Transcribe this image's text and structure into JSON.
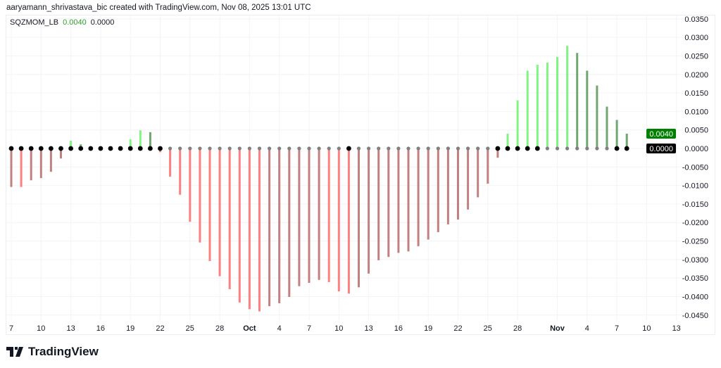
{
  "header": {
    "attribution": "aaryamann_shrivastava_bic created with TradingView.com, Nov 08, 2025 13:01 UTC"
  },
  "legend": {
    "name": "SQZMOM_LB",
    "value1": "0.0040",
    "value2": "0.0000"
  },
  "logo": {
    "text": "TradingView"
  },
  "price_labels": {
    "current": "0.0040",
    "zero": "0.0000",
    "current_color": "#008000",
    "zero_color": "#000000"
  },
  "chart_data": {
    "type": "bar",
    "title": "",
    "x_ticks": [
      "7",
      "10",
      "13",
      "16",
      "19",
      "22",
      "25",
      "28",
      "Oct",
      "4",
      "7",
      "10",
      "13",
      "16",
      "19",
      "22",
      "25",
      "28",
      "Nov",
      "4",
      "7",
      "10",
      "13"
    ],
    "y_ticks": [
      "0.0350",
      "0.0300",
      "0.0250",
      "0.0200",
      "0.0150",
      "0.0100",
      "0.0050",
      "0.0000",
      "-0.0050",
      "-0.0100",
      "-0.0150",
      "-0.0200",
      "-0.0250",
      "-0.0300",
      "-0.0350",
      "-0.0400",
      "-0.0450"
    ],
    "ylim": [
      -0.0465,
      0.0365
    ],
    "x_range": [
      "2025-09-07",
      "2025-11-08"
    ],
    "grid": true,
    "colors": {
      "lime": "#80f580",
      "green": "#6fa76f",
      "red": "#ff8080",
      "maroon": "#c28080",
      "dot_on": "#000000",
      "dot_off": "#808080"
    },
    "values": [
      -0.0104,
      -0.0104,
      -0.0086,
      -0.008,
      -0.0063,
      -0.0027,
      0.0021,
      0.0011,
      0.0002,
      0.0001,
      0.0,
      -0.0004,
      0.0025,
      0.0049,
      0.0044,
      -0.001,
      -0.0076,
      -0.0125,
      -0.0198,
      -0.0254,
      -0.0304,
      -0.0345,
      -0.038,
      -0.0416,
      -0.0434,
      -0.044,
      -0.0426,
      -0.0418,
      -0.0401,
      -0.0372,
      -0.0363,
      -0.0355,
      -0.0361,
      -0.0386,
      -0.0392,
      -0.0375,
      -0.0338,
      -0.0302,
      -0.0293,
      -0.0282,
      -0.0278,
      -0.0264,
      -0.0246,
      -0.0226,
      -0.0205,
      -0.0192,
      -0.0165,
      -0.0132,
      -0.0095,
      -0.0025,
      0.004,
      0.013,
      0.021,
      0.0226,
      0.0232,
      0.0247,
      0.0277,
      0.0258,
      0.021,
      0.017,
      0.0113,
      0.0077,
      0.004
    ],
    "bar_colors": [
      "maroon",
      "red",
      "maroon",
      "maroon",
      "maroon",
      "maroon",
      "lime",
      "green",
      "green",
      "green",
      "green",
      "red",
      "lime",
      "lime",
      "green",
      "red",
      "red",
      "red",
      "red",
      "red",
      "red",
      "red",
      "red",
      "red",
      "red",
      "red",
      "maroon",
      "maroon",
      "maroon",
      "maroon",
      "maroon",
      "maroon",
      "red",
      "red",
      "red",
      "maroon",
      "maroon",
      "maroon",
      "maroon",
      "maroon",
      "maroon",
      "maroon",
      "maroon",
      "maroon",
      "maroon",
      "maroon",
      "maroon",
      "maroon",
      "maroon",
      "maroon",
      "lime",
      "lime",
      "lime",
      "lime",
      "lime",
      "lime",
      "lime",
      "green",
      "green",
      "green",
      "green",
      "green",
      "green"
    ],
    "squeeze_on": [
      1,
      1,
      1,
      1,
      1,
      1,
      1,
      1,
      1,
      1,
      1,
      1,
      1,
      1,
      1,
      1,
      0,
      0,
      0,
      0,
      0,
      0,
      0,
      0,
      0,
      0,
      0,
      0,
      0,
      0,
      0,
      0,
      0,
      0,
      1,
      0,
      0,
      0,
      0,
      0,
      0,
      0,
      0,
      0,
      0,
      0,
      0,
      0,
      0,
      1,
      1,
      1,
      1,
      1,
      0,
      0,
      0,
      0,
      0,
      0,
      0,
      1,
      1
    ]
  }
}
